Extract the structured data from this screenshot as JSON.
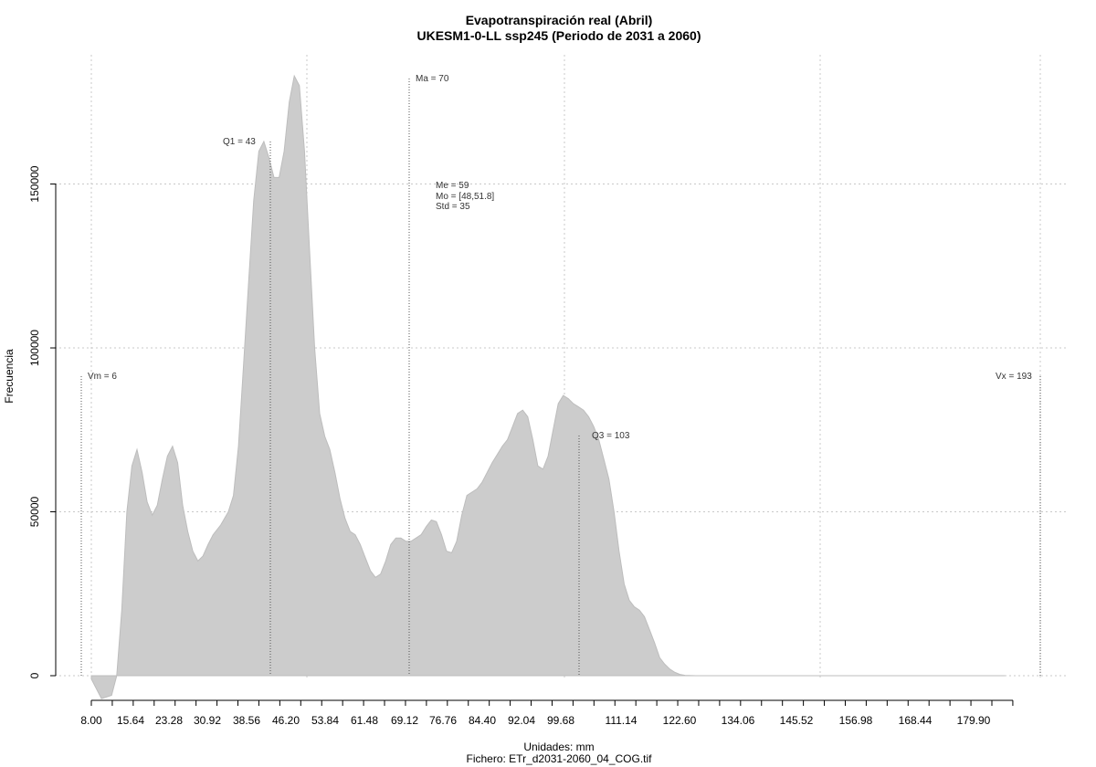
{
  "chart_data": {
    "type": "area",
    "title": "Evapotranspiración real (Abril)",
    "subtitle": "UKESM1-0-LL ssp245 (Periodo de 2031 a 2060)",
    "xlabel": "Unidades: mm",
    "ylabel": "Frecuencia",
    "footer": "Fichero: ETr_d2031-2060_04_COG.tif",
    "xlim": [
      6,
      193
    ],
    "ylim": [
      -7000,
      190000
    ],
    "x_ticks": [
      "8.00",
      "15.64",
      "23.28",
      "30.92",
      "38.56",
      "46.20",
      "53.84",
      "61.48",
      "69.12",
      "76.76",
      "84.40",
      "92.04",
      "99.68",
      "111.14",
      "122.60",
      "134.06",
      "145.52",
      "156.98",
      "168.44",
      "179.90"
    ],
    "y_ticks": [
      "0",
      "50000",
      "100000",
      "150000"
    ],
    "grid": true,
    "annotations": {
      "vm": "Vm = 6",
      "q1": "Q1 = 43",
      "ma": "Ma = 70",
      "me": "Me = 59",
      "mo": "Mo = [48,51.8]",
      "std": "Std = 35",
      "q3": "Q3 = 103",
      "vx": "Vx = 193"
    },
    "series": [
      {
        "values": [
          [
            6,
            -1000
          ],
          [
            8,
            -7000
          ],
          [
            10,
            -6000
          ],
          [
            11,
            0
          ],
          [
            12,
            20000
          ],
          [
            13,
            50000
          ],
          [
            14,
            64000
          ],
          [
            15,
            69000
          ],
          [
            16,
            62000
          ],
          [
            17,
            53000
          ],
          [
            18,
            49000
          ],
          [
            19,
            52000
          ],
          [
            20,
            60000
          ],
          [
            21,
            67000
          ],
          [
            22,
            70000
          ],
          [
            23,
            65000
          ],
          [
            24,
            52000
          ],
          [
            25,
            44000
          ],
          [
            26,
            38000
          ],
          [
            27,
            35000
          ],
          [
            28,
            36500
          ],
          [
            29,
            40000
          ],
          [
            30,
            43000
          ],
          [
            31.5,
            46000
          ],
          [
            33,
            50000
          ],
          [
            34,
            55000
          ],
          [
            35,
            70000
          ],
          [
            36,
            95000
          ],
          [
            37,
            120000
          ],
          [
            38,
            145000
          ],
          [
            39,
            160000
          ],
          [
            40,
            163000
          ],
          [
            41,
            158000
          ],
          [
            42,
            152000
          ],
          [
            43,
            152000
          ],
          [
            44,
            160000
          ],
          [
            45,
            175000
          ],
          [
            46,
            183000
          ],
          [
            47,
            180000
          ],
          [
            48,
            160000
          ],
          [
            49,
            130000
          ],
          [
            50,
            100000
          ],
          [
            51,
            80000
          ],
          [
            52,
            73000
          ],
          [
            53,
            69000
          ],
          [
            54,
            62000
          ],
          [
            55,
            54000
          ],
          [
            56,
            48000
          ],
          [
            57,
            44000
          ],
          [
            58,
            43000
          ],
          [
            59,
            40000
          ],
          [
            60,
            36000
          ],
          [
            61,
            32000
          ],
          [
            62,
            30000
          ],
          [
            63,
            31000
          ],
          [
            64,
            35000
          ],
          [
            65,
            40000
          ],
          [
            66,
            42000
          ],
          [
            67,
            42000
          ],
          [
            68,
            41000
          ],
          [
            69,
            41000
          ],
          [
            70,
            42000
          ],
          [
            71,
            43000
          ],
          [
            72,
            45500
          ],
          [
            73,
            47500
          ],
          [
            74,
            47000
          ],
          [
            75,
            43000
          ],
          [
            76,
            38000
          ],
          [
            77,
            37500
          ],
          [
            78,
            41000
          ],
          [
            79,
            49000
          ],
          [
            80,
            55000
          ],
          [
            81,
            56000
          ],
          [
            82,
            57000
          ],
          [
            83,
            59000
          ],
          [
            84,
            62000
          ],
          [
            85,
            65000
          ],
          [
            86,
            67500
          ],
          [
            87,
            70000
          ],
          [
            88,
            72000
          ],
          [
            89,
            76000
          ],
          [
            90,
            80000
          ],
          [
            91,
            81000
          ],
          [
            92,
            79000
          ],
          [
            93,
            72000
          ],
          [
            94,
            64000
          ],
          [
            95,
            63000
          ],
          [
            96,
            67000
          ],
          [
            97,
            75000
          ],
          [
            98,
            83000
          ],
          [
            99,
            85500
          ],
          [
            100,
            84500
          ],
          [
            101,
            83000
          ],
          [
            102,
            82000
          ],
          [
            103,
            81000
          ],
          [
            104,
            79000
          ],
          [
            105,
            76000
          ],
          [
            106,
            72000
          ],
          [
            107,
            66000
          ],
          [
            108,
            60000
          ],
          [
            109,
            50000
          ],
          [
            110,
            38000
          ],
          [
            111,
            28000
          ],
          [
            112,
            23000
          ],
          [
            113,
            21000
          ],
          [
            114,
            20000
          ],
          [
            115,
            18000
          ],
          [
            116,
            14000
          ],
          [
            117,
            10000
          ],
          [
            118,
            5500
          ],
          [
            119,
            3500
          ],
          [
            120,
            2000
          ],
          [
            121,
            1000
          ],
          [
            122,
            400
          ],
          [
            123,
            100
          ],
          [
            125,
            0
          ],
          [
            140,
            0
          ],
          [
            160,
            0
          ],
          [
            180,
            0
          ],
          [
            186,
            0
          ]
        ]
      }
    ]
  }
}
